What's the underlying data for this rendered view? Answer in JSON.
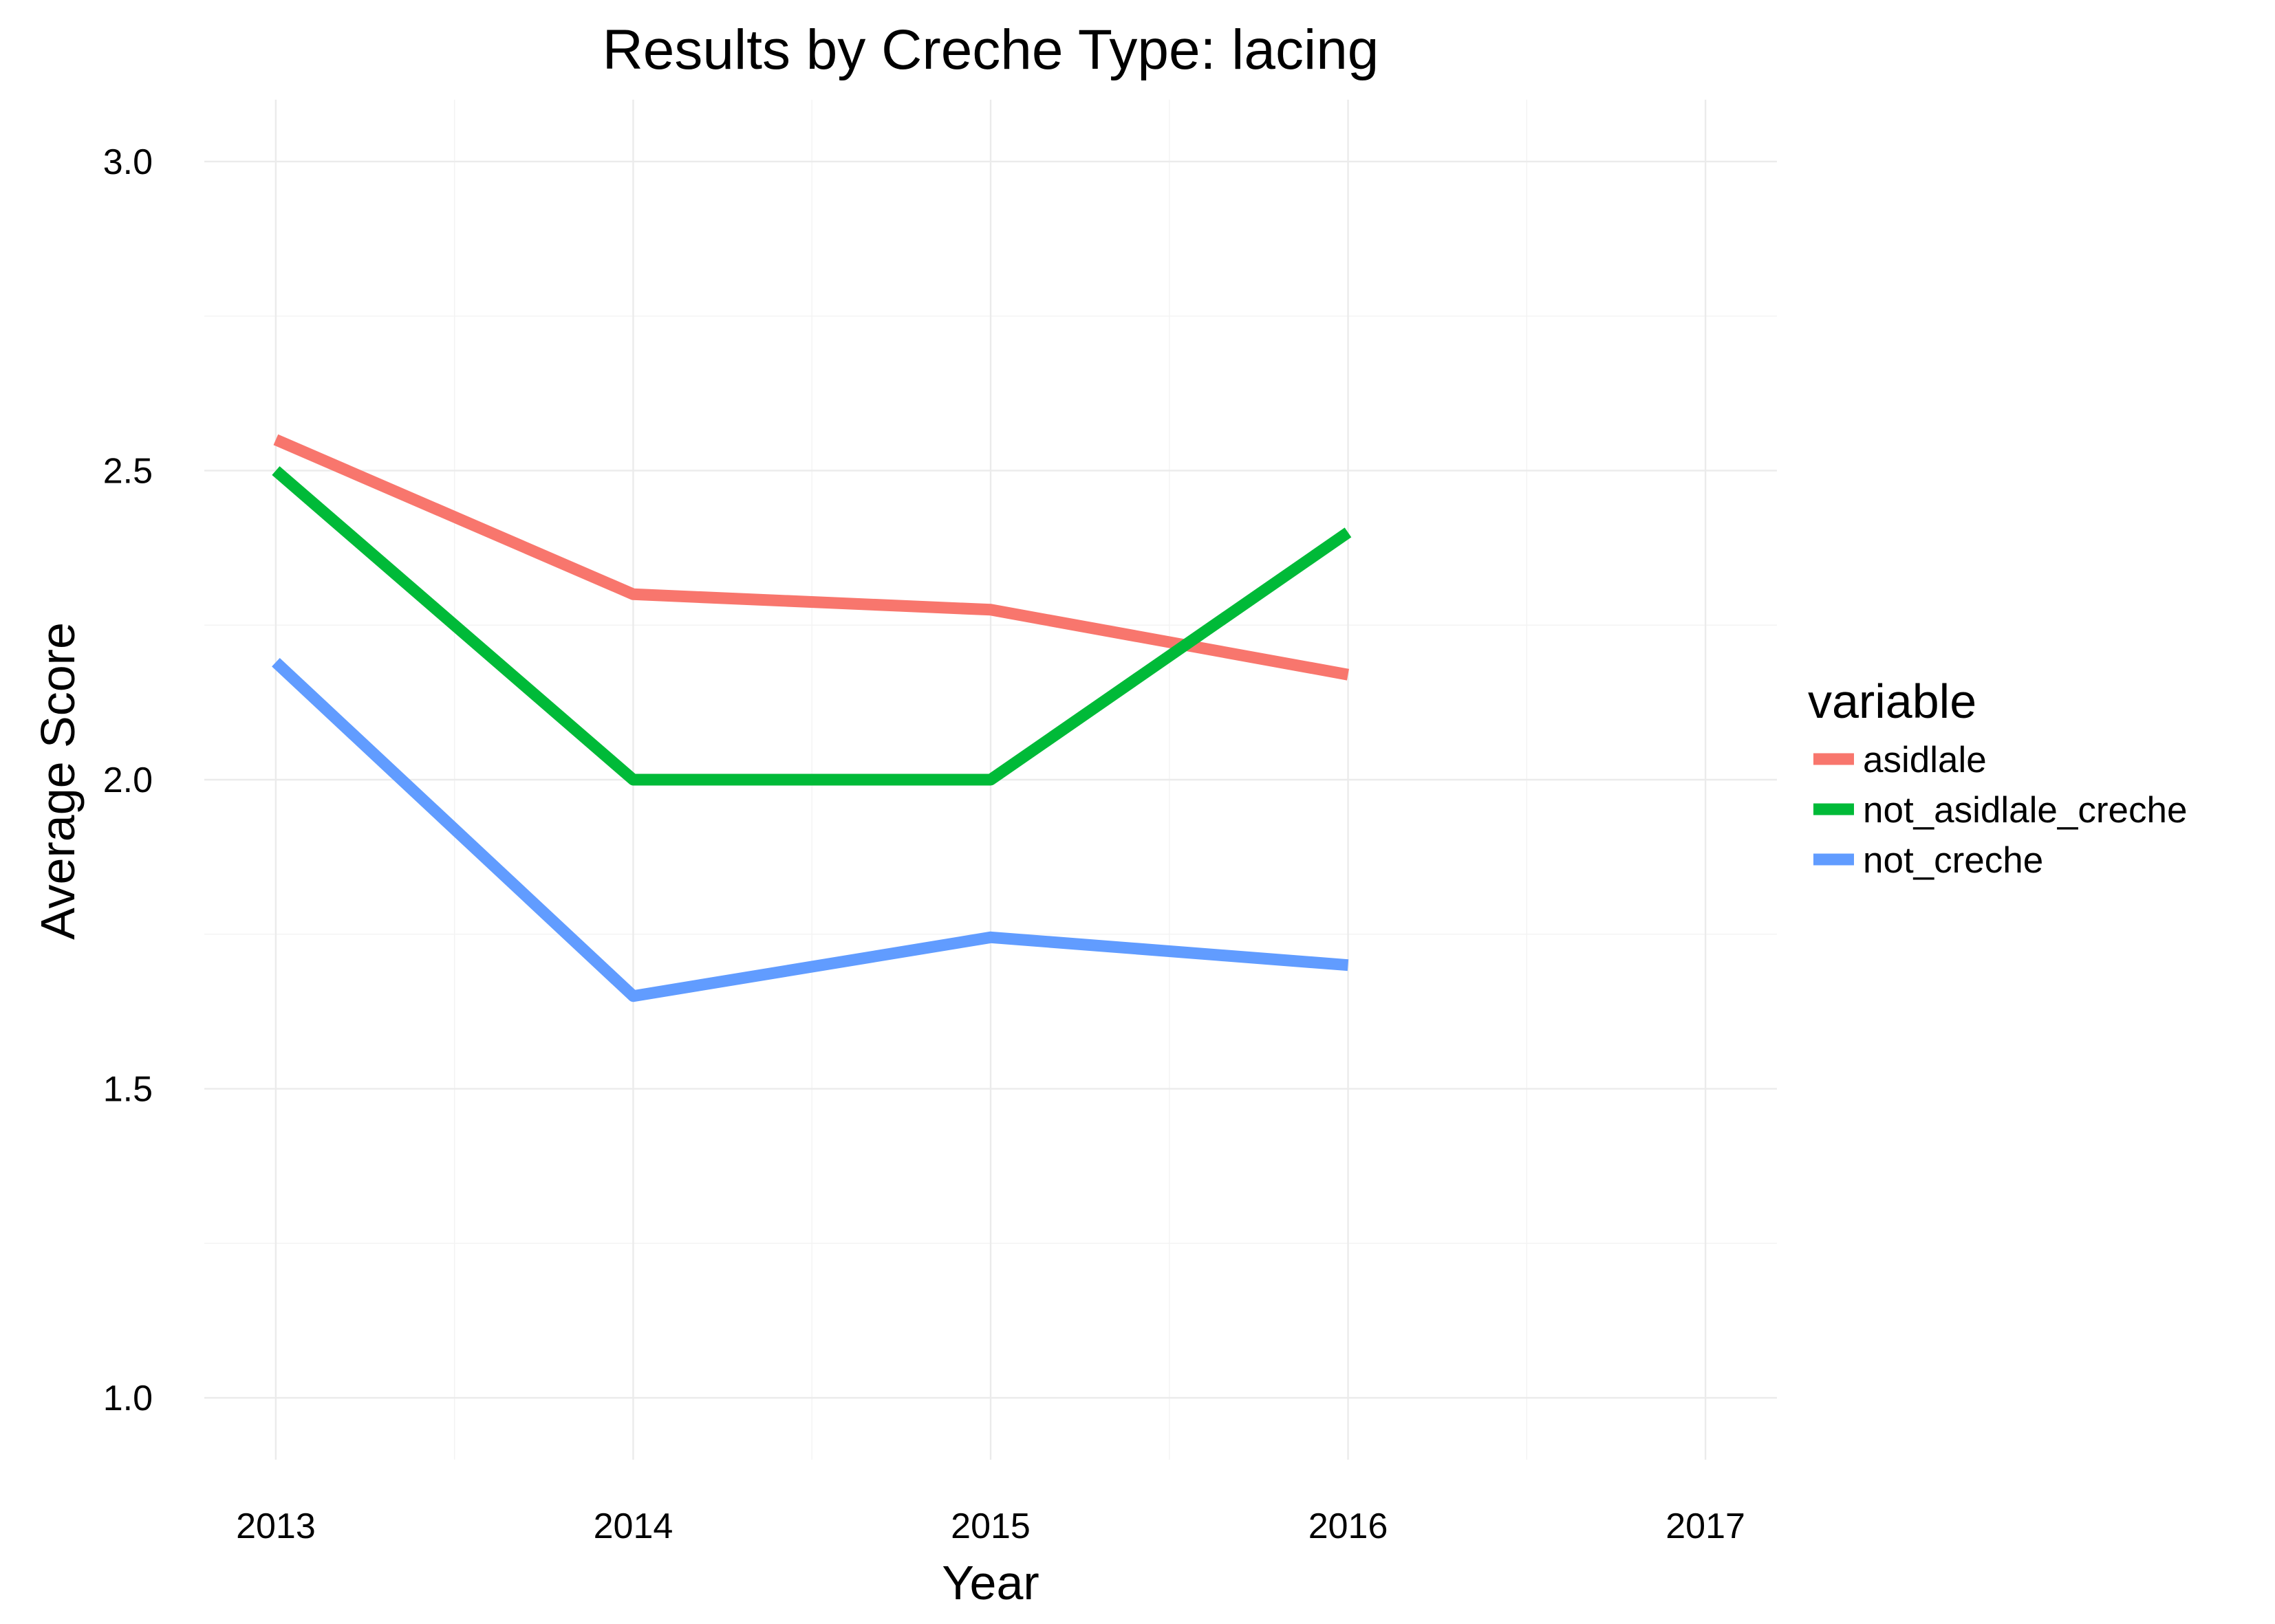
{
  "chart_data": {
    "type": "line",
    "title": "Results by Creche Type: lacing",
    "xlabel": "Year",
    "ylabel": "Average Score",
    "x": [
      2013,
      2014,
      2015,
      2016
    ],
    "xticks": [
      "2013",
      "2014",
      "2015",
      "2016",
      "2017"
    ],
    "xlim": [
      2012.8,
      2017.2
    ],
    "yticks": [
      "1.0",
      "1.5",
      "2.0",
      "2.5",
      "3.0"
    ],
    "ylim": [
      0.9,
      3.1
    ],
    "grid": true,
    "legend": {
      "title": "variable",
      "placement": "right"
    },
    "series": [
      {
        "name": "asidlale",
        "color": "#f8766d",
        "values": [
          2.55,
          2.3,
          2.275,
          2.17
        ]
      },
      {
        "name": "not_asidlale_creche",
        "color": "#00ba38",
        "values": [
          2.5,
          2.0,
          2.0,
          2.4
        ]
      },
      {
        "name": "not_creche",
        "color": "#619cff",
        "values": [
          2.19,
          1.65,
          1.745,
          1.7
        ]
      }
    ]
  }
}
